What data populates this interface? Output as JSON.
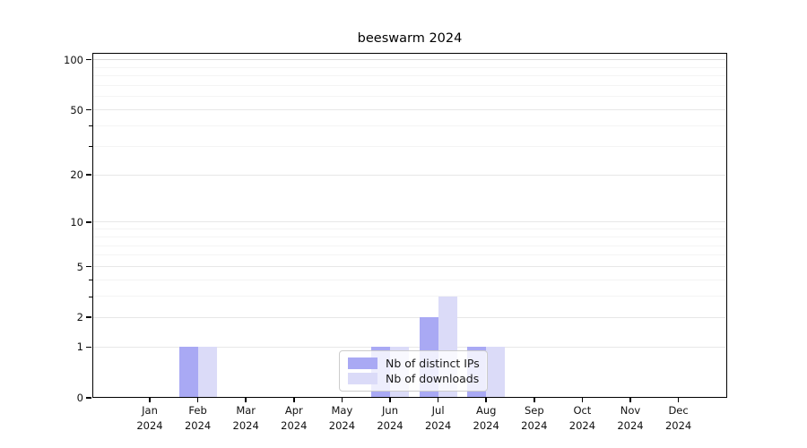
{
  "chart_data": {
    "type": "bar",
    "title": "beeswarm 2024",
    "categories": [
      "Jan",
      "Feb",
      "Mar",
      "Apr",
      "May",
      "Jun",
      "Jul",
      "Aug",
      "Sep",
      "Oct",
      "Nov",
      "Dec"
    ],
    "year_label": "2024",
    "series": [
      {
        "name": "Nb of distinct IPs",
        "color": "#a9a9f4",
        "values": [
          0,
          1,
          0,
          0,
          0,
          1,
          2,
          1,
          0,
          0,
          0,
          0
        ]
      },
      {
        "name": "Nb of downloads",
        "color": "#dbdbf8",
        "values": [
          0,
          1,
          0,
          0,
          0,
          1,
          3,
          1,
          0,
          0,
          0,
          0
        ]
      }
    ],
    "yscale": "log1p",
    "ylim": [
      0,
      110
    ],
    "ytick_values": [
      0,
      1,
      2,
      5,
      10,
      20,
      50,
      100
    ],
    "ytick_labels": [
      "0",
      "1",
      "2",
      "5",
      "10",
      "20",
      "50",
      "100"
    ],
    "yminor_values": [
      3,
      4,
      6,
      7,
      8,
      9,
      30,
      40,
      60,
      70,
      80,
      90
    ],
    "yminor_tick_values": [
      3,
      4,
      30,
      40
    ],
    "grid": "horizontal",
    "legend_position": "lower center",
    "colors": {
      "major_gridline": "#e7e7e7",
      "top_gridline": "#d8d8d8",
      "minor_gridline": "#f4f4f4",
      "axis": "#000000"
    }
  }
}
